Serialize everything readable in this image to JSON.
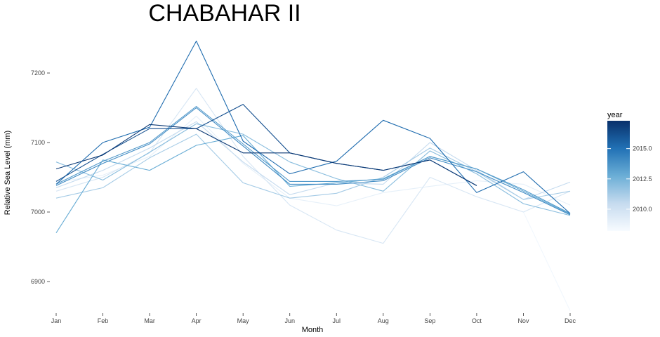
{
  "chart_data": {
    "type": "line",
    "title": "CHABAHAR II",
    "xlabel": "Month",
    "ylabel": "Relative Sea Level (mm)",
    "categories": [
      "Jan",
      "Feb",
      "Mar",
      "Apr",
      "May",
      "Jun",
      "Jul",
      "Aug",
      "Sep",
      "Oct",
      "Nov",
      "Dec"
    ],
    "yticks": [
      6900,
      7000,
      7100,
      7200
    ],
    "ytick_labels": [
      "6900",
      "7000",
      "7100",
      "7200"
    ],
    "ylim": [
      6855,
      7258
    ],
    "grid": false,
    "legend": {
      "title": "year",
      "position": "right",
      "colorscale": "Blues",
      "min": 2008.2,
      "max": 2017.3,
      "ticks": [
        2010.0,
        2012.5,
        2015.0
      ],
      "tick_labels": [
        "2010.0",
        "2012.5",
        "2015.0"
      ]
    },
    "series": [
      {
        "year": 2008.5,
        "values": [
          null,
          null,
          null,
          null,
          null,
          null,
          null,
          null,
          null,
          null,
          7000,
          6858
        ]
      },
      {
        "year": 2009,
        "values": [
          7043,
          7053,
          7080,
          7138,
          7070,
          7020,
          7009,
          7028,
          7037,
          7045,
          7040,
          7010
        ]
      },
      {
        "year": 2009.7,
        "values": [
          7030,
          7050,
          7085,
          7178,
          7080,
          7010,
          6974,
          6955,
          7050,
          7022,
          7000,
          7030
        ]
      },
      {
        "year": 2010.5,
        "values": [
          7035,
          7060,
          7092,
          7130,
          7072,
          7025,
          7042,
          7040,
          7100,
          7060,
          7018,
          7043
        ]
      },
      {
        "year": 2011.3,
        "values": [
          7020,
          7035,
          7078,
          7112,
          7042,
          7020,
          7027,
          7050,
          7092,
          7058,
          7018,
          7030
        ]
      },
      {
        "year": 2012,
        "values": [
          7072,
          7046,
          7086,
          7127,
          7112,
          7072,
          7048,
          7030,
          7088,
          7055,
          7012,
          6995
        ]
      },
      {
        "year": 2012.8,
        "values": [
          6970,
          7075,
          7060,
          7096,
          7110,
          7037,
          7042,
          7048,
          7080,
          7062,
          7030,
          6997
        ]
      },
      {
        "year": 2013.5,
        "values": [
          7040,
          7073,
          7100,
          7152,
          7098,
          7044,
          7044,
          7047,
          7080,
          7062,
          7032,
          6998
        ]
      },
      {
        "year": 2014,
        "values": [
          7038,
          7070,
          7098,
          7150,
          7095,
          7040,
          7040,
          7045,
          7078,
          7058,
          7028,
          6996
        ]
      },
      {
        "year": 2015.2,
        "values": [
          7040,
          7100,
          7122,
          7246,
          7102,
          7055,
          7073,
          7132,
          7106,
          7028,
          7058,
          6998
        ]
      },
      {
        "year": 2016.2,
        "values": [
          7044,
          7083,
          7120,
          7120,
          7155,
          7085,
          7070,
          7060,
          7075,
          7038,
          null,
          null
        ]
      },
      {
        "year": 2017,
        "values": [
          7062,
          7082,
          7126,
          7120,
          7085,
          7085,
          7070,
          7060,
          7075,
          7038,
          null,
          null
        ]
      }
    ]
  }
}
